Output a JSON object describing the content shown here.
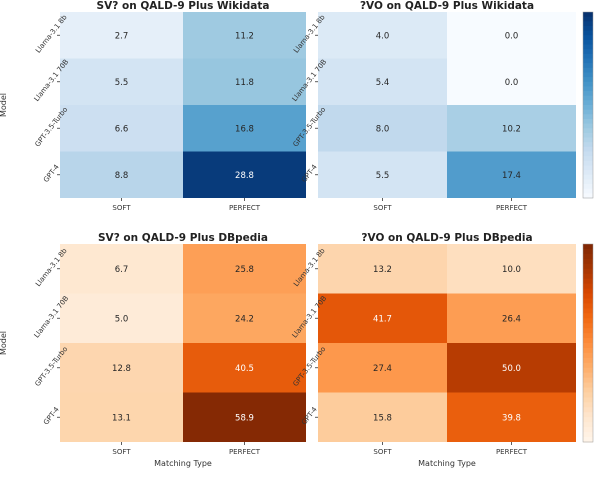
{
  "chart_data": [
    {
      "type": "heatmap",
      "title": "SV? on QALD-9 Plus Wikidata",
      "rows": [
        "Llama-3.1 8b",
        "Llama-3.1 70B",
        "GPT-3.5-Turbo",
        "GPT-4"
      ],
      "columns": [
        "SOFT",
        "PERFECT"
      ],
      "values": [
        [
          2.7,
          11.2
        ],
        [
          5.5,
          11.8
        ],
        [
          6.6,
          16.8
        ],
        [
          8.8,
          28.8
        ]
      ],
      "colormap": "blues",
      "ylabel": "Model",
      "xlabel": ""
    },
    {
      "type": "heatmap",
      "title": "?VO on QALD-9 Plus Wikidata",
      "rows": [
        "Llama-3.1 8b",
        "Llama-3.1 70B",
        "GPT-3.5-Turbo",
        "GPT-4"
      ],
      "columns": [
        "SOFT",
        "PERFECT"
      ],
      "values": [
        [
          4.0,
          0.0
        ],
        [
          5.4,
          0.0
        ],
        [
          8.0,
          10.2
        ],
        [
          5.5,
          17.4
        ]
      ],
      "colormap": "blues",
      "ylabel": "",
      "xlabel": ""
    },
    {
      "type": "heatmap",
      "title": "SV? on QALD-9 Plus DBpedia",
      "rows": [
        "Llama-3.1 8b",
        "Llama-3.1 70B",
        "GPT-3.5-Turbo",
        "GPT-4"
      ],
      "columns": [
        "SOFT",
        "PERFECT"
      ],
      "values": [
        [
          6.7,
          25.8
        ],
        [
          5.0,
          24.2
        ],
        [
          12.8,
          40.5
        ],
        [
          13.1,
          58.9
        ]
      ],
      "colormap": "oranges",
      "ylabel": "Model",
      "xlabel": "Matching Type"
    },
    {
      "type": "heatmap",
      "title": "?VO on QALD-9 Plus DBpedia",
      "rows": [
        "Llama-3.1 8b",
        "Llama-3.1 70B",
        "GPT-3.5-Turbo",
        "GPT-4"
      ],
      "columns": [
        "SOFT",
        "PERFECT"
      ],
      "values": [
        [
          13.2,
          10.0
        ],
        [
          41.7,
          26.4
        ],
        [
          27.4,
          50.0
        ],
        [
          15.8,
          39.8
        ]
      ],
      "colormap": "oranges",
      "ylabel": "",
      "xlabel": "Matching Type"
    }
  ],
  "colors": {
    "blues": [
      "#f7fbff",
      "#deebf7",
      "#c6dbef",
      "#9ecae1",
      "#6baed6",
      "#4292c6",
      "#2171b5",
      "#08519c",
      "#08306b"
    ],
    "oranges": [
      "#fff5eb",
      "#fee6ce",
      "#fdd0a2",
      "#fdae6b",
      "#fd8d3c",
      "#f16913",
      "#d94801",
      "#a63603",
      "#7f2704"
    ]
  },
  "colorbars": [
    {
      "colormap": "blues",
      "min": 0,
      "max": 30
    },
    {
      "colormap": "oranges",
      "min": 0,
      "max": 60
    }
  ]
}
